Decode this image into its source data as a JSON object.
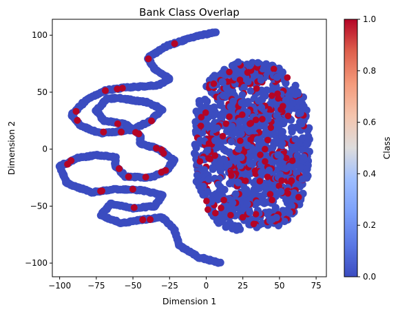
{
  "chart_data": {
    "type": "scatter",
    "title": "Bank Class Overlap",
    "xlabel": "Dimension 1",
    "ylabel": "Dimension 2",
    "xlim": [
      -105,
      82
    ],
    "ylim": [
      -112,
      114
    ],
    "xticks": [
      -100,
      -75,
      -50,
      -25,
      0,
      25,
      50,
      75
    ],
    "yticks": [
      -100,
      -50,
      0,
      50,
      100
    ],
    "colorbar": {
      "label": "Class",
      "colormap": "coolwarm",
      "range": [
        0.0,
        1.0
      ],
      "ticks": [
        "0.0",
        "0.2",
        "0.4",
        "0.6",
        "0.8",
        "1.0"
      ],
      "low_color": "#3b4cc0",
      "high_color": "#b40426"
    },
    "grid": false,
    "series": [
      {
        "class": 0,
        "color": "#3b4cc0",
        "shape": "serpentine band on left plus dense cluster on right",
        "path": [
          [
            7,
            103
          ],
          [
            -10,
            98
          ],
          [
            -28,
            90
          ],
          [
            -40,
            80
          ],
          [
            -35,
            70
          ],
          [
            -25,
            62
          ],
          [
            -32,
            56
          ],
          [
            -55,
            54
          ],
          [
            -68,
            52
          ],
          [
            -82,
            43
          ],
          [
            -92,
            30
          ],
          [
            -85,
            20
          ],
          [
            -72,
            14
          ],
          [
            -50,
            17
          ],
          [
            -38,
            25
          ],
          [
            -30,
            35
          ],
          [
            -40,
            41
          ],
          [
            -60,
            45
          ],
          [
            -68,
            44
          ],
          [
            -75,
            34
          ],
          [
            -70,
            25
          ],
          [
            -55,
            22
          ],
          [
            -45,
            12
          ],
          [
            -45,
            5
          ],
          [
            -32,
            0
          ],
          [
            -22,
            -10
          ],
          [
            -28,
            -20
          ],
          [
            -38,
            -25
          ],
          [
            -55,
            -24
          ],
          [
            -62,
            -15
          ],
          [
            -62,
            -7
          ],
          [
            -75,
            -5
          ],
          [
            -88,
            -8
          ],
          [
            -100,
            -15
          ],
          [
            -95,
            -30
          ],
          [
            -78,
            -38
          ],
          [
            -62,
            -35
          ],
          [
            -45,
            -36
          ],
          [
            -30,
            -40
          ],
          [
            -35,
            -50
          ],
          [
            -50,
            -52
          ],
          [
            -65,
            -48
          ],
          [
            -72,
            -58
          ],
          [
            -58,
            -65
          ],
          [
            -45,
            -62
          ],
          [
            -30,
            -60
          ],
          [
            -22,
            -70
          ],
          [
            -18,
            -85
          ],
          [
            -5,
            -95
          ],
          [
            10,
            -100
          ]
        ],
        "cluster": {
          "x_range": [
            -7,
            70
          ],
          "y_range": [
            -72,
            76
          ],
          "points": 900
        }
      },
      {
        "class": 1,
        "color": "#b40426",
        "shape": "scattered red points along band and within cluster"
      }
    ]
  }
}
